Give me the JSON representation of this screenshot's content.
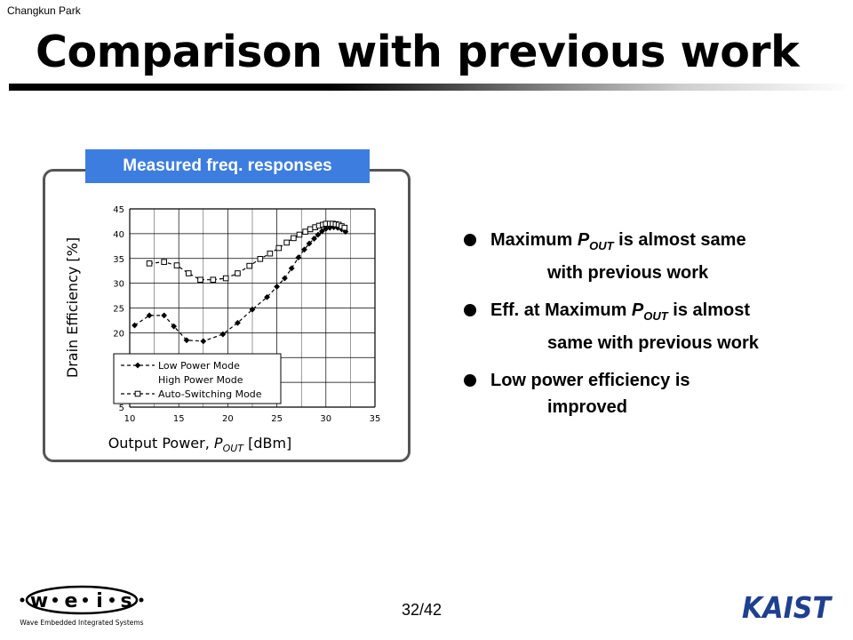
{
  "header": {
    "author": "Changkun Park",
    "title": "Comparison with previous work"
  },
  "panel": {
    "tab_label": "Measured freq. responses"
  },
  "bullets": [
    {
      "pre": "Maximum ",
      "p": "P",
      "sub": "OUT",
      "line1_rest": " is almost same",
      "line2": "with previous work"
    },
    {
      "pre": "Eff. at Maximum ",
      "p": "P",
      "sub": "OUT",
      "line1_rest": " is almost",
      "line2": "same with previous work"
    },
    {
      "pre": "Low power efficiency is",
      "p": "",
      "sub": "",
      "line1_rest": "",
      "line2": "improved"
    }
  ],
  "footer": {
    "page": "32/42",
    "logo_left_letters": [
      "w",
      "e",
      "i",
      "s"
    ],
    "logo_left_caption": "Wave Embedded Integrated Systems",
    "logo_right": "KAIST"
  },
  "chart_data": {
    "type": "line",
    "xlabel_prefix": "Output Power, ",
    "xlabel_var": "P",
    "xlabel_sub": "OUT",
    "xlabel_suffix": " [dBm]",
    "ylabel": "Drain Efficiency [%]",
    "xlim": [
      10,
      35
    ],
    "ylim": [
      5,
      45
    ],
    "xticks": [
      10,
      15,
      20,
      25,
      30,
      35
    ],
    "yticks": [
      5,
      10,
      15,
      20,
      25,
      30,
      35,
      40,
      45
    ],
    "grid": true,
    "legend_position": "bottom-left",
    "series": [
      {
        "name": "Low Power Mode",
        "marker": "filled-diamond",
        "line": "dashed",
        "x": [
          10.5,
          12,
          13.5,
          14.5,
          15.8,
          17.5,
          19.5,
          21,
          22.5,
          24,
          25,
          25.8,
          26.5,
          27.2,
          27.8,
          28.3,
          28.8,
          29.2,
          29.6,
          30,
          30.4,
          30.8,
          31.2,
          31.6,
          32
        ],
        "y": [
          21.5,
          23.5,
          23.5,
          21.3,
          18.5,
          18.3,
          19.7,
          22,
          24.7,
          27.2,
          29.3,
          31,
          33,
          35.2,
          36.8,
          38,
          39,
          39.8,
          40.5,
          41,
          41.2,
          41.3,
          41.2,
          40.9,
          40.4
        ]
      },
      {
        "name": "High Power Mode",
        "marker": "none",
        "line": "none",
        "x": [],
        "y": []
      },
      {
        "name": "Auto-Switching Mode",
        "marker": "open-square",
        "line": "dashed",
        "x": [
          12,
          13.5,
          14.8,
          16,
          17.2,
          18.5,
          19.8,
          21,
          22.2,
          23.3,
          24.3,
          25.2,
          26,
          26.7,
          27.3,
          27.9,
          28.4,
          28.9,
          29.3,
          29.7,
          30,
          30.4,
          30.7,
          31,
          31.3,
          31.6,
          31.9
        ],
        "y": [
          34,
          34.3,
          33.6,
          32,
          30.7,
          30.7,
          31,
          32,
          33.5,
          34.9,
          36,
          37.1,
          38.2,
          39.1,
          39.8,
          40.4,
          40.9,
          41.3,
          41.6,
          41.8,
          42,
          42,
          42,
          41.9,
          41.8,
          41.5,
          41.2
        ]
      }
    ]
  }
}
